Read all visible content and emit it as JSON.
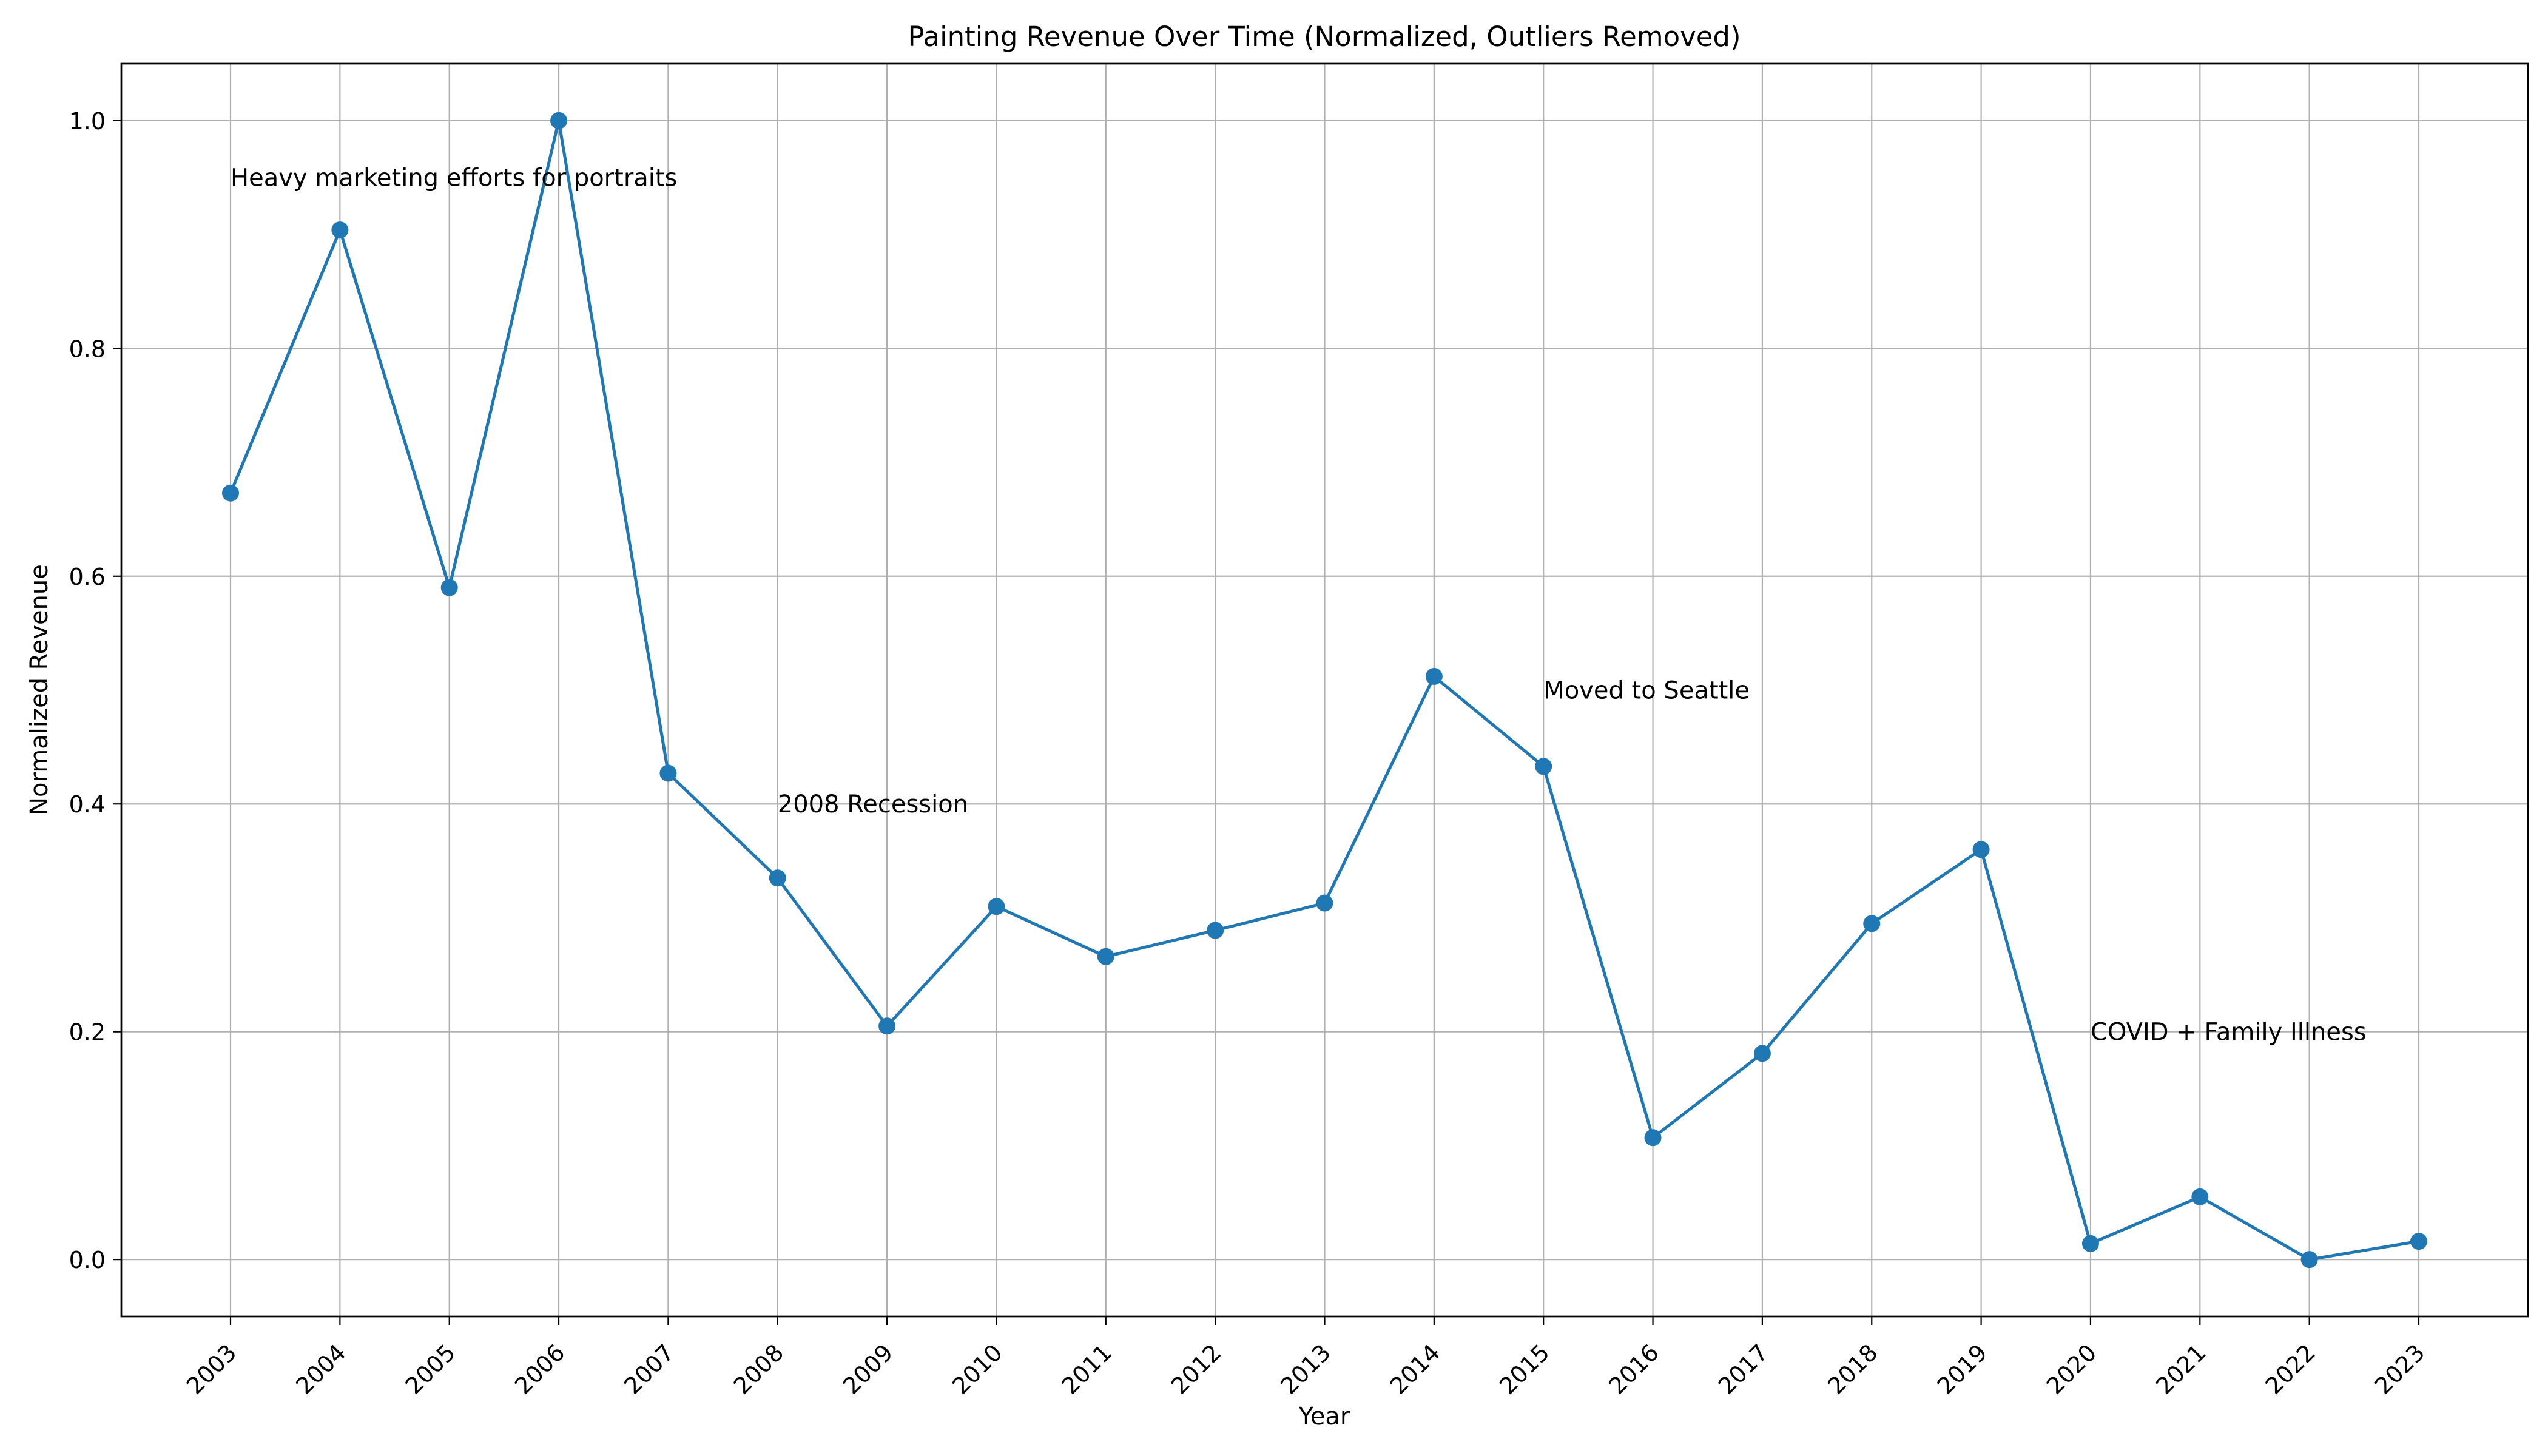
{
  "chart_data": {
    "type": "line",
    "title": "Painting Revenue Over Time (Normalized, Outliers Removed)",
    "xlabel": "Year",
    "ylabel": "Normalized Revenue",
    "x": [
      "2003",
      "2004",
      "2005",
      "2006",
      "2007",
      "2008",
      "2009",
      "2010",
      "2011",
      "2012",
      "2013",
      "2014",
      "2015",
      "2016",
      "2017",
      "2018",
      "2019",
      "2020",
      "2021",
      "2022",
      "2023"
    ],
    "series": [
      {
        "values": [
          0.673,
          0.904,
          0.59,
          1.0,
          0.427,
          0.335,
          0.205,
          0.31,
          0.266,
          0.289,
          0.313,
          0.512,
          0.433,
          0.107,
          0.181,
          0.295,
          0.36,
          0.014,
          0.055,
          0.0,
          0.016
        ],
        "color": "#1f77b4"
      }
    ],
    "ylim": [
      -0.05,
      1.05
    ],
    "yticks": [
      0.0,
      0.2,
      0.4,
      0.6,
      0.8,
      1.0
    ],
    "ytick_labels": [
      "0.0",
      "0.2",
      "0.4",
      "0.6",
      "0.8",
      "1.0"
    ],
    "grid": true,
    "annotations": [
      {
        "text": "Heavy marketing efforts for portraits",
        "x": "2003",
        "y": 0.95
      },
      {
        "text": "2008 Recession",
        "x": "2008",
        "y": 0.4
      },
      {
        "text": "Moved to Seattle",
        "x": "2015",
        "y": 0.5
      },
      {
        "text": "COVID + Family Illness",
        "x": "2020",
        "y": 0.2
      }
    ]
  }
}
